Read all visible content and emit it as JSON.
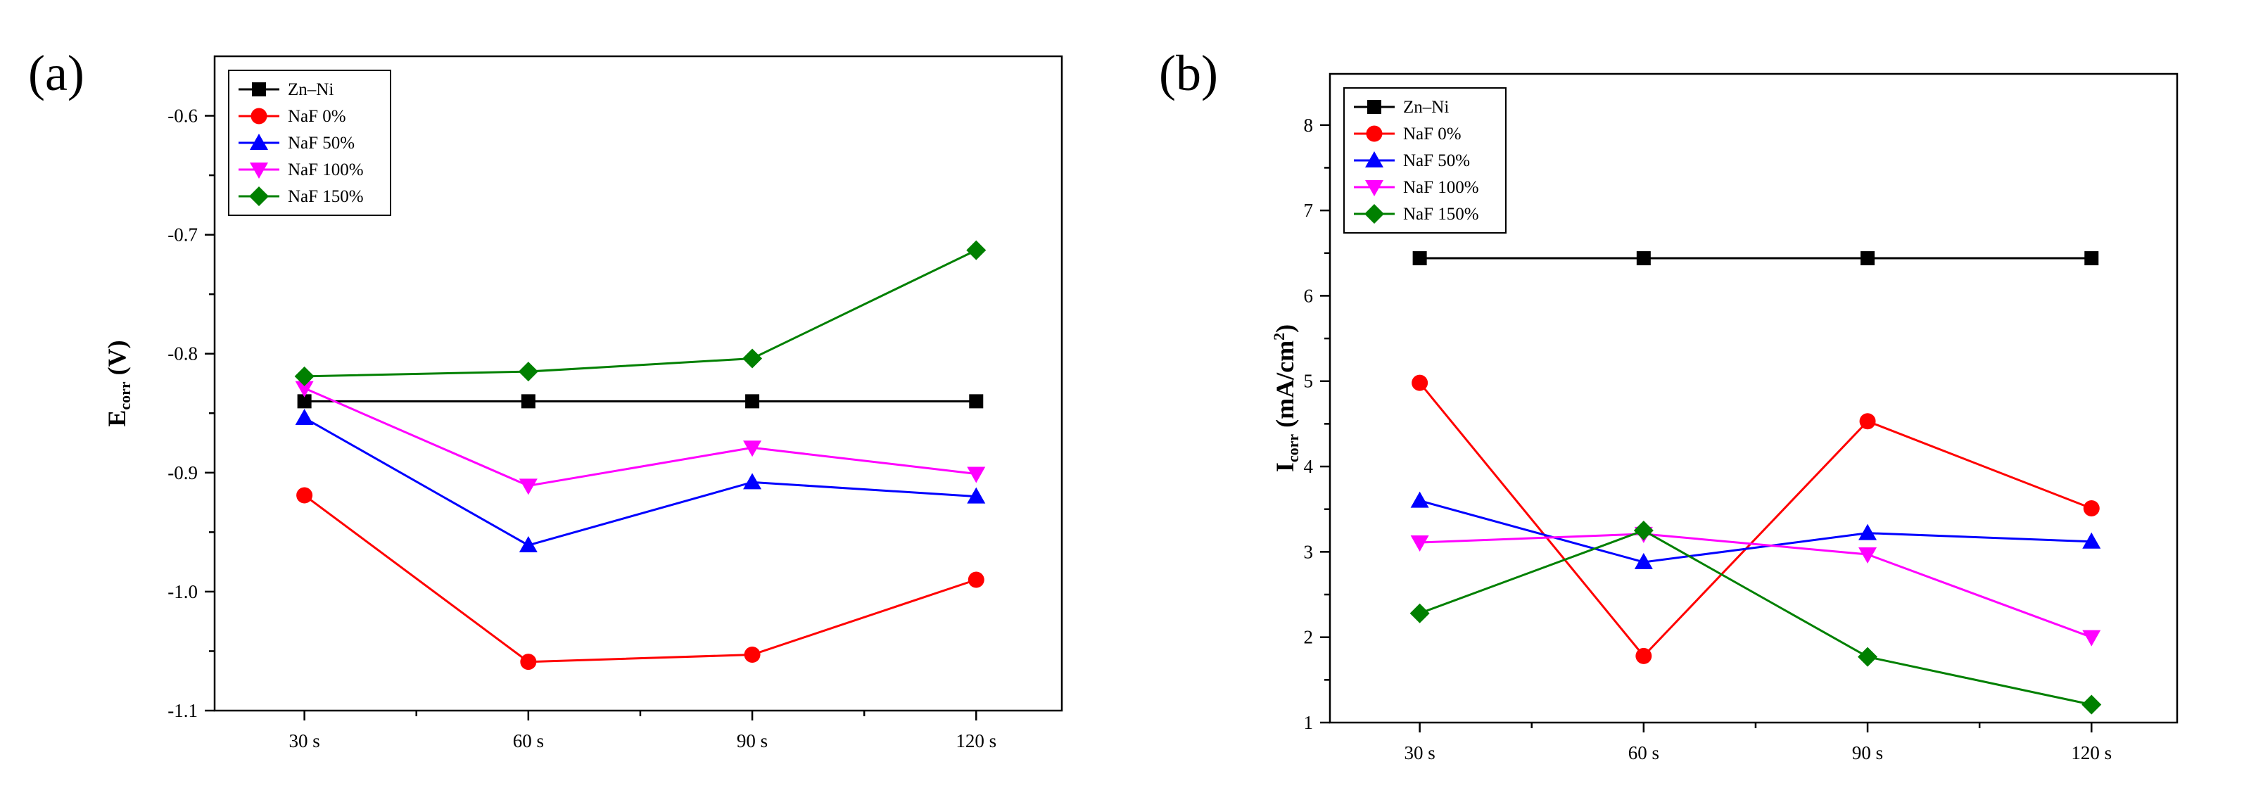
{
  "chart_data": [
    {
      "panel_label": "(a)",
      "type": "line",
      "categories": [
        "30 s",
        "60 s",
        "90 s",
        "120 s"
      ],
      "ylabel_main": "E",
      "ylabel_sub": "corr",
      "ylabel_unit": " (V)",
      "ylim": [
        -1.1,
        -0.55
      ],
      "yticks": [
        -1.1,
        -1.0,
        -0.9,
        -0.8,
        -0.7,
        -0.6
      ],
      "ytick_labels": [
        "-1.1",
        "-1.0",
        "-0.9",
        "-0.8",
        "-0.7",
        "-0.6"
      ],
      "grid": false,
      "legend_position": "top-left",
      "series": [
        {
          "name": "Zn–Ni",
          "color": "#000000",
          "marker": "square",
          "values": [
            -0.84,
            -0.84,
            -0.84,
            -0.84
          ]
        },
        {
          "name": "NaF 0%",
          "color": "#ff0000",
          "marker": "circle",
          "values": [
            -0.919,
            -1.059,
            -1.053,
            -0.99
          ]
        },
        {
          "name": "NaF 50%",
          "color": "#0000ff",
          "marker": "triangle-up",
          "values": [
            -0.854,
            -0.961,
            -0.908,
            -0.92
          ]
        },
        {
          "name": "NaF 100%",
          "color": "#ff00ff",
          "marker": "triangle-down",
          "values": [
            -0.829,
            -0.911,
            -0.879,
            -0.901
          ]
        },
        {
          "name": "NaF 150%",
          "color": "#008000",
          "marker": "diamond",
          "values": [
            -0.819,
            -0.815,
            -0.804,
            -0.713
          ]
        }
      ]
    },
    {
      "panel_label": "(b)",
      "type": "line",
      "categories": [
        "30 s",
        "60 s",
        "90 s",
        "120 s"
      ],
      "ylabel_main": "I",
      "ylabel_sub": "corr",
      "ylabel_unit": " (mA/cm",
      "ylabel_sup": "2",
      "ylabel_close": ")",
      "ylim": [
        1,
        8.6
      ],
      "yticks": [
        1,
        2,
        3,
        4,
        5,
        6,
        7,
        8
      ],
      "ytick_labels": [
        "1",
        "2",
        "3",
        "4",
        "5",
        "6",
        "7",
        "8"
      ],
      "grid": false,
      "legend_position": "top-left",
      "series": [
        {
          "name": "Zn–Ni",
          "color": "#000000",
          "marker": "square",
          "values": [
            6.44,
            6.44,
            6.44,
            6.44
          ]
        },
        {
          "name": "NaF 0%",
          "color": "#ff0000",
          "marker": "circle",
          "values": [
            4.98,
            1.78,
            4.53,
            3.51
          ]
        },
        {
          "name": "NaF 50%",
          "color": "#0000ff",
          "marker": "triangle-up",
          "values": [
            3.6,
            2.88,
            3.22,
            3.12
          ]
        },
        {
          "name": "NaF 100%",
          "color": "#ff00ff",
          "marker": "triangle-down",
          "values": [
            3.11,
            3.21,
            2.97,
            2.0
          ]
        },
        {
          "name": "NaF 150%",
          "color": "#008000",
          "marker": "diamond",
          "values": [
            2.28,
            3.25,
            1.77,
            1.21
          ]
        }
      ]
    }
  ]
}
